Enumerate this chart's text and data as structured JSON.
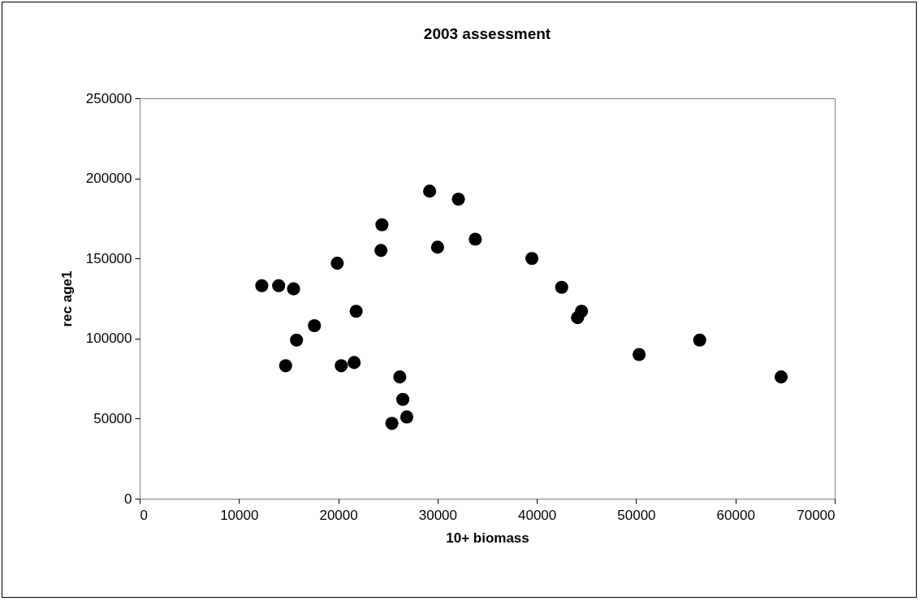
{
  "chart_data": {
    "type": "scatter",
    "title": "2003 assessment",
    "xlabel": "10+ biomass",
    "ylabel": "rec age1",
    "x": [
      12300,
      14000,
      15500,
      14700,
      15800,
      17600,
      19900,
      20300,
      21600,
      21800,
      24300,
      24400,
      25400,
      26200,
      26500,
      26900,
      29200,
      30000,
      32100,
      33800,
      39500,
      42500,
      44100,
      44500,
      50300,
      56400,
      64600
    ],
    "series": [
      {
        "color": "#000000",
        "values": [
          133000,
          133000,
          131000,
          83000,
          99000,
          108000,
          147000,
          83000,
          85000,
          117000,
          155000,
          171000,
          47000,
          76000,
          62000,
          51000,
          192000,
          157000,
          187000,
          162000,
          150000,
          132000,
          113000,
          117000,
          90000,
          99000,
          76000
        ]
      }
    ],
    "xlim": [
      0,
      70000
    ],
    "xticks": [
      0,
      10000,
      20000,
      30000,
      40000,
      50000,
      60000,
      70000
    ],
    "ylim": [
      0,
      250000
    ],
    "yticks": [
      0,
      50000,
      100000,
      150000,
      200000,
      250000
    ],
    "marker": "circle",
    "grid": false,
    "legend": false
  }
}
